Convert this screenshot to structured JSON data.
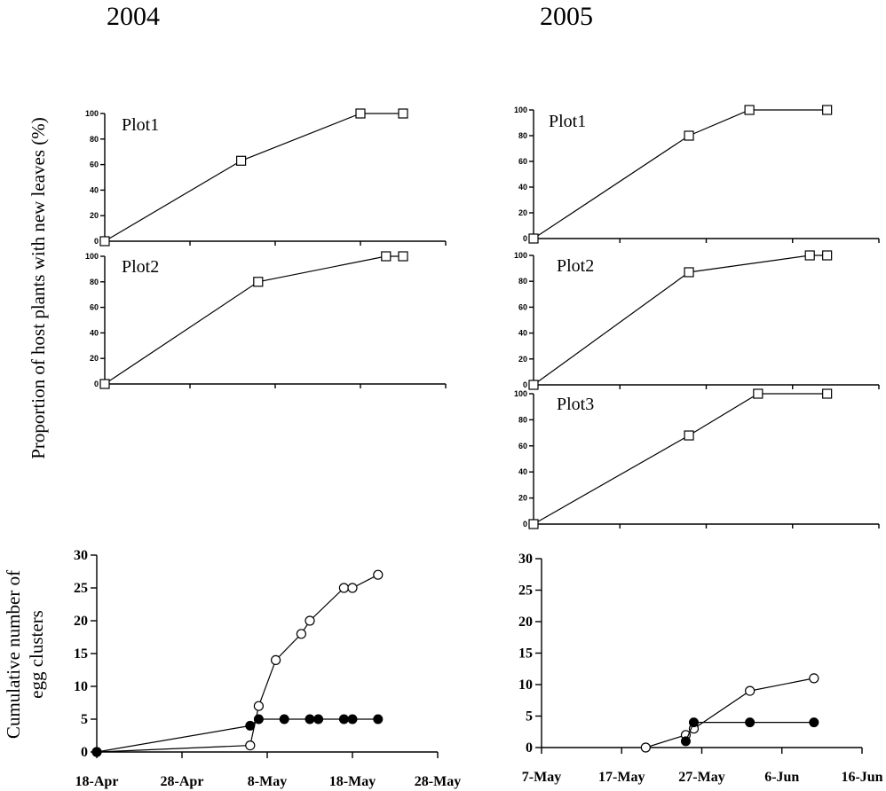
{
  "year_labels": [
    "2004",
    "2005"
  ],
  "ylabel_top": "Proportion of host plants with new leaves (%)",
  "ylabel_bottom": [
    "Cumulative number of",
    "egg clusters"
  ],
  "chart_data": [
    {
      "type": "line",
      "year": "2004",
      "label": "Plot1",
      "x": [
        "18-Apr",
        "4-May",
        "18-May",
        "23-May"
      ],
      "y": [
        0,
        63,
        100,
        100
      ],
      "xlim": [
        "18-Apr",
        "28-May"
      ],
      "ylim": [
        0,
        100
      ],
      "yticks": [
        0,
        20,
        40,
        60,
        80,
        100
      ],
      "marker": "open-square"
    },
    {
      "type": "line",
      "year": "2004",
      "label": "Plot2",
      "x": [
        "18-Apr",
        "6-May",
        "21-May",
        "23-May"
      ],
      "y": [
        0,
        80,
        100,
        100
      ],
      "xlim": [
        "18-Apr",
        "28-May"
      ],
      "ylim": [
        0,
        100
      ],
      "yticks": [
        0,
        20,
        40,
        60,
        80,
        100
      ],
      "marker": "open-square"
    },
    {
      "type": "line",
      "year": "2005",
      "label": "Plot1",
      "x": [
        "7-May",
        "25-May",
        "1-Jun",
        "10-Jun"
      ],
      "y": [
        0,
        80,
        100,
        100
      ],
      "xlim": [
        "7-May",
        "16-Jun"
      ],
      "ylim": [
        0,
        100
      ],
      "yticks": [
        0,
        20,
        40,
        60,
        80,
        100
      ],
      "marker": "open-square"
    },
    {
      "type": "line",
      "year": "2005",
      "label": "Plot2",
      "x": [
        "7-May",
        "25-May",
        "8-Jun",
        "10-Jun"
      ],
      "y": [
        0,
        87,
        100,
        100
      ],
      "xlim": [
        "7-May",
        "16-Jun"
      ],
      "ylim": [
        0,
        100
      ],
      "yticks": [
        0,
        20,
        40,
        60,
        80,
        100
      ],
      "marker": "open-square"
    },
    {
      "type": "line",
      "year": "2005",
      "label": "Plot3",
      "x": [
        "7-May",
        "25-May",
        "2-Jun",
        "10-Jun"
      ],
      "y": [
        0,
        68,
        100,
        100
      ],
      "xlim": [
        "7-May",
        "16-Jun"
      ],
      "ylim": [
        0,
        100
      ],
      "yticks": [
        0,
        20,
        40,
        60,
        80,
        100
      ],
      "marker": "open-square"
    },
    {
      "type": "line",
      "year": "2004",
      "label": "",
      "xlim": [
        "18-Apr",
        "28-May"
      ],
      "ylim": [
        0,
        30
      ],
      "yticks": [
        0,
        5,
        10,
        15,
        20,
        25,
        30
      ],
      "xticks": [
        "18-Apr",
        "28-Apr",
        "8-May",
        "18-May",
        "28-May"
      ],
      "series": [
        {
          "marker": "open-circle",
          "x": [
            "18-Apr",
            "6-May",
            "7-May",
            "9-May",
            "12-May",
            "13-May",
            "17-May",
            "18-May",
            "21-May"
          ],
          "y": [
            0,
            1,
            7,
            14,
            18,
            20,
            25,
            25,
            27
          ]
        },
        {
          "marker": "filled-circle",
          "x": [
            "18-Apr",
            "6-May",
            "7-May",
            "10-May",
            "13-May",
            "14-May",
            "17-May",
            "18-May",
            "21-May"
          ],
          "y": [
            0,
            4,
            5,
            5,
            5,
            5,
            5,
            5,
            5
          ]
        }
      ]
    },
    {
      "type": "line",
      "year": "2005",
      "label": "",
      "xlim": [
        "7-May",
        "16-Jun"
      ],
      "ylim": [
        0,
        30
      ],
      "yticks": [
        0,
        5,
        10,
        15,
        20,
        25,
        30
      ],
      "xticks": [
        "7-May",
        "17-May",
        "27-May",
        "6-Jun",
        "16-Jun"
      ],
      "series": [
        {
          "marker": "open-circle",
          "x": [
            "20-May",
            "25-May",
            "26-May",
            "2-Jun",
            "10-Jun"
          ],
          "y": [
            0,
            2,
            3,
            9,
            11
          ]
        },
        {
          "marker": "filled-circle",
          "x": [
            "25-May",
            "26-May",
            "2-Jun",
            "10-Jun"
          ],
          "y": [
            1,
            4,
            4,
            4
          ]
        }
      ]
    }
  ]
}
